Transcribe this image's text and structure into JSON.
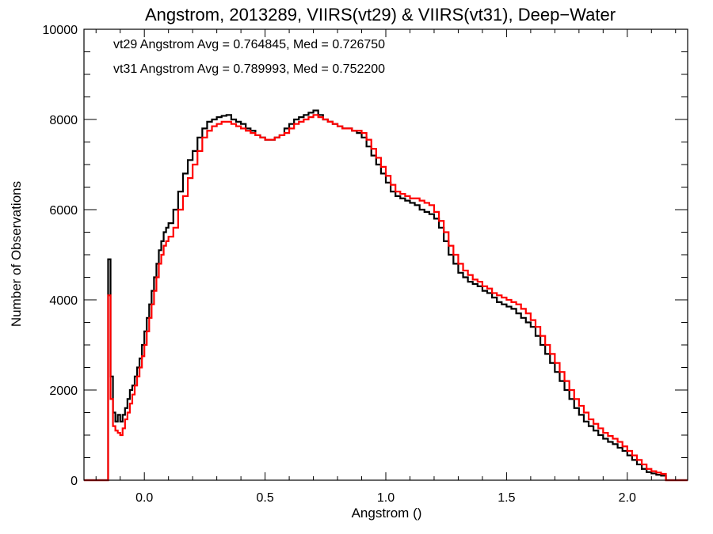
{
  "chart_data": {
    "type": "line",
    "step": true,
    "title": "Angstrom, 2013289, VIIRS(vt29) & VIIRS(vt31), Deep−Water",
    "xlabel": "Angstrom ()",
    "ylabel": "Number of Observations",
    "xlim": [
      -0.25,
      2.25
    ],
    "ylim": [
      0,
      10000
    ],
    "xticks": [
      0.0,
      0.5,
      1.0,
      1.5,
      2.0
    ],
    "xtick_labels": [
      "0.0",
      "0.5",
      "1.0",
      "1.5",
      "2.0"
    ],
    "yticks": [
      0,
      2000,
      4000,
      6000,
      8000,
      10000
    ],
    "ytick_labels": [
      "0",
      "2000",
      "4000",
      "6000",
      "8000",
      "10000"
    ],
    "grid": false,
    "annotations": [
      {
        "text": "vt29 Angstrom Avg = 0.764845, Med = 0.726750",
        "color": "#000000"
      },
      {
        "text": "vt31 Angstrom Avg = 0.789993, Med = 0.752200",
        "color": "#ff0000"
      }
    ],
    "series": [
      {
        "color": "#000000",
        "x": [
          -0.25,
          -0.15,
          -0.14,
          -0.13,
          -0.12,
          -0.11,
          -0.1,
          -0.09,
          -0.08,
          -0.07,
          -0.06,
          -0.05,
          -0.04,
          -0.03,
          -0.02,
          -0.01,
          0.0,
          0.01,
          0.02,
          0.03,
          0.04,
          0.05,
          0.06,
          0.07,
          0.08,
          0.09,
          0.1,
          0.12,
          0.14,
          0.16,
          0.18,
          0.2,
          0.22,
          0.24,
          0.26,
          0.28,
          0.3,
          0.32,
          0.34,
          0.36,
          0.38,
          0.4,
          0.42,
          0.44,
          0.46,
          0.48,
          0.5,
          0.52,
          0.54,
          0.56,
          0.58,
          0.6,
          0.62,
          0.64,
          0.66,
          0.68,
          0.7,
          0.72,
          0.74,
          0.76,
          0.78,
          0.8,
          0.82,
          0.84,
          0.86,
          0.88,
          0.9,
          0.92,
          0.94,
          0.96,
          0.98,
          1.0,
          1.02,
          1.04,
          1.06,
          1.08,
          1.1,
          1.12,
          1.14,
          1.16,
          1.18,
          1.2,
          1.22,
          1.24,
          1.26,
          1.28,
          1.3,
          1.32,
          1.34,
          1.36,
          1.38,
          1.4,
          1.42,
          1.44,
          1.46,
          1.48,
          1.5,
          1.52,
          1.54,
          1.56,
          1.58,
          1.6,
          1.62,
          1.64,
          1.66,
          1.68,
          1.7,
          1.72,
          1.74,
          1.76,
          1.78,
          1.8,
          1.82,
          1.84,
          1.86,
          1.88,
          1.9,
          1.92,
          1.94,
          1.96,
          1.98,
          2.0,
          2.02,
          2.04,
          2.06,
          2.08,
          2.1,
          2.12,
          2.14,
          2.16,
          2.25
        ],
        "y": [
          0,
          4900,
          2300,
          1500,
          1300,
          1450,
          1300,
          1450,
          1600,
          1800,
          2000,
          2100,
          2300,
          2500,
          2700,
          3000,
          3300,
          3600,
          3900,
          4200,
          4500,
          4800,
          5100,
          5300,
          5500,
          5600,
          5700,
          6000,
          6400,
          6800,
          7100,
          7300,
          7600,
          7800,
          7950,
          8000,
          8050,
          8080,
          8100,
          8000,
          7950,
          7900,
          7800,
          7750,
          7650,
          7600,
          7550,
          7550,
          7600,
          7650,
          7800,
          7900,
          8000,
          8050,
          8100,
          8150,
          8200,
          8100,
          8000,
          7950,
          7900,
          7850,
          7800,
          7800,
          7750,
          7700,
          7600,
          7400,
          7200,
          7000,
          6800,
          6600,
          6400,
          6300,
          6250,
          6200,
          6150,
          6100,
          6000,
          5950,
          5900,
          5800,
          5600,
          5300,
          5000,
          4800,
          4600,
          4500,
          4400,
          4350,
          4300,
          4200,
          4150,
          4050,
          3950,
          3900,
          3850,
          3800,
          3700,
          3600,
          3500,
          3400,
          3200,
          3000,
          2800,
          2600,
          2400,
          2200,
          2000,
          1800,
          1600,
          1450,
          1300,
          1200,
          1100,
          1000,
          920,
          850,
          800,
          720,
          650,
          550,
          450,
          350,
          250,
          180,
          150,
          120,
          100,
          0,
          0
        ],
        "name": ""
      },
      {
        "color": "#ff0000",
        "x": [
          -0.25,
          -0.15,
          -0.14,
          -0.13,
          -0.12,
          -0.11,
          -0.1,
          -0.09,
          -0.08,
          -0.07,
          -0.06,
          -0.05,
          -0.04,
          -0.03,
          -0.02,
          -0.01,
          0.0,
          0.01,
          0.02,
          0.03,
          0.04,
          0.05,
          0.06,
          0.07,
          0.08,
          0.09,
          0.1,
          0.12,
          0.14,
          0.16,
          0.18,
          0.2,
          0.22,
          0.24,
          0.26,
          0.28,
          0.3,
          0.32,
          0.34,
          0.36,
          0.38,
          0.4,
          0.42,
          0.44,
          0.46,
          0.48,
          0.5,
          0.52,
          0.54,
          0.56,
          0.58,
          0.6,
          0.62,
          0.64,
          0.66,
          0.68,
          0.7,
          0.72,
          0.74,
          0.76,
          0.78,
          0.8,
          0.82,
          0.84,
          0.86,
          0.88,
          0.9,
          0.92,
          0.94,
          0.96,
          0.98,
          1.0,
          1.02,
          1.04,
          1.06,
          1.08,
          1.1,
          1.12,
          1.14,
          1.16,
          1.18,
          1.2,
          1.22,
          1.24,
          1.26,
          1.28,
          1.3,
          1.32,
          1.34,
          1.36,
          1.38,
          1.4,
          1.42,
          1.44,
          1.46,
          1.48,
          1.5,
          1.52,
          1.54,
          1.56,
          1.58,
          1.6,
          1.62,
          1.64,
          1.66,
          1.68,
          1.7,
          1.72,
          1.74,
          1.76,
          1.78,
          1.8,
          1.82,
          1.84,
          1.86,
          1.88,
          1.9,
          1.92,
          1.94,
          1.96,
          1.98,
          2.0,
          2.02,
          2.04,
          2.06,
          2.08,
          2.1,
          2.12,
          2.14,
          2.16,
          2.25
        ],
        "y": [
          0,
          4100,
          1800,
          1200,
          1100,
          1050,
          1000,
          1150,
          1350,
          1500,
          1700,
          1900,
          2100,
          2300,
          2500,
          2750,
          3000,
          3300,
          3600,
          3900,
          4200,
          4500,
          4800,
          5000,
          5200,
          5300,
          5400,
          5600,
          6000,
          6300,
          6700,
          7000,
          7300,
          7600,
          7750,
          7850,
          7900,
          7950,
          7950,
          7900,
          7850,
          7800,
          7750,
          7700,
          7650,
          7600,
          7550,
          7550,
          7600,
          7650,
          7700,
          7800,
          7900,
          7950,
          8000,
          8050,
          8100,
          8050,
          8000,
          7950,
          7900,
          7850,
          7800,
          7800,
          7750,
          7750,
          7700,
          7550,
          7350,
          7150,
          6950,
          6750,
          6550,
          6400,
          6350,
          6300,
          6250,
          6250,
          6200,
          6150,
          6100,
          5950,
          5750,
          5500,
          5200,
          5000,
          4800,
          4650,
          4550,
          4450,
          4400,
          4300,
          4250,
          4150,
          4100,
          4050,
          4000,
          3950,
          3900,
          3800,
          3700,
          3550,
          3400,
          3200,
          3000,
          2800,
          2600,
          2400,
          2200,
          2000,
          1800,
          1650,
          1500,
          1350,
          1250,
          1150,
          1050,
          980,
          920,
          850,
          750,
          650,
          550,
          450,
          350,
          250,
          200,
          170,
          140,
          0,
          0
        ],
        "name": ""
      }
    ]
  }
}
